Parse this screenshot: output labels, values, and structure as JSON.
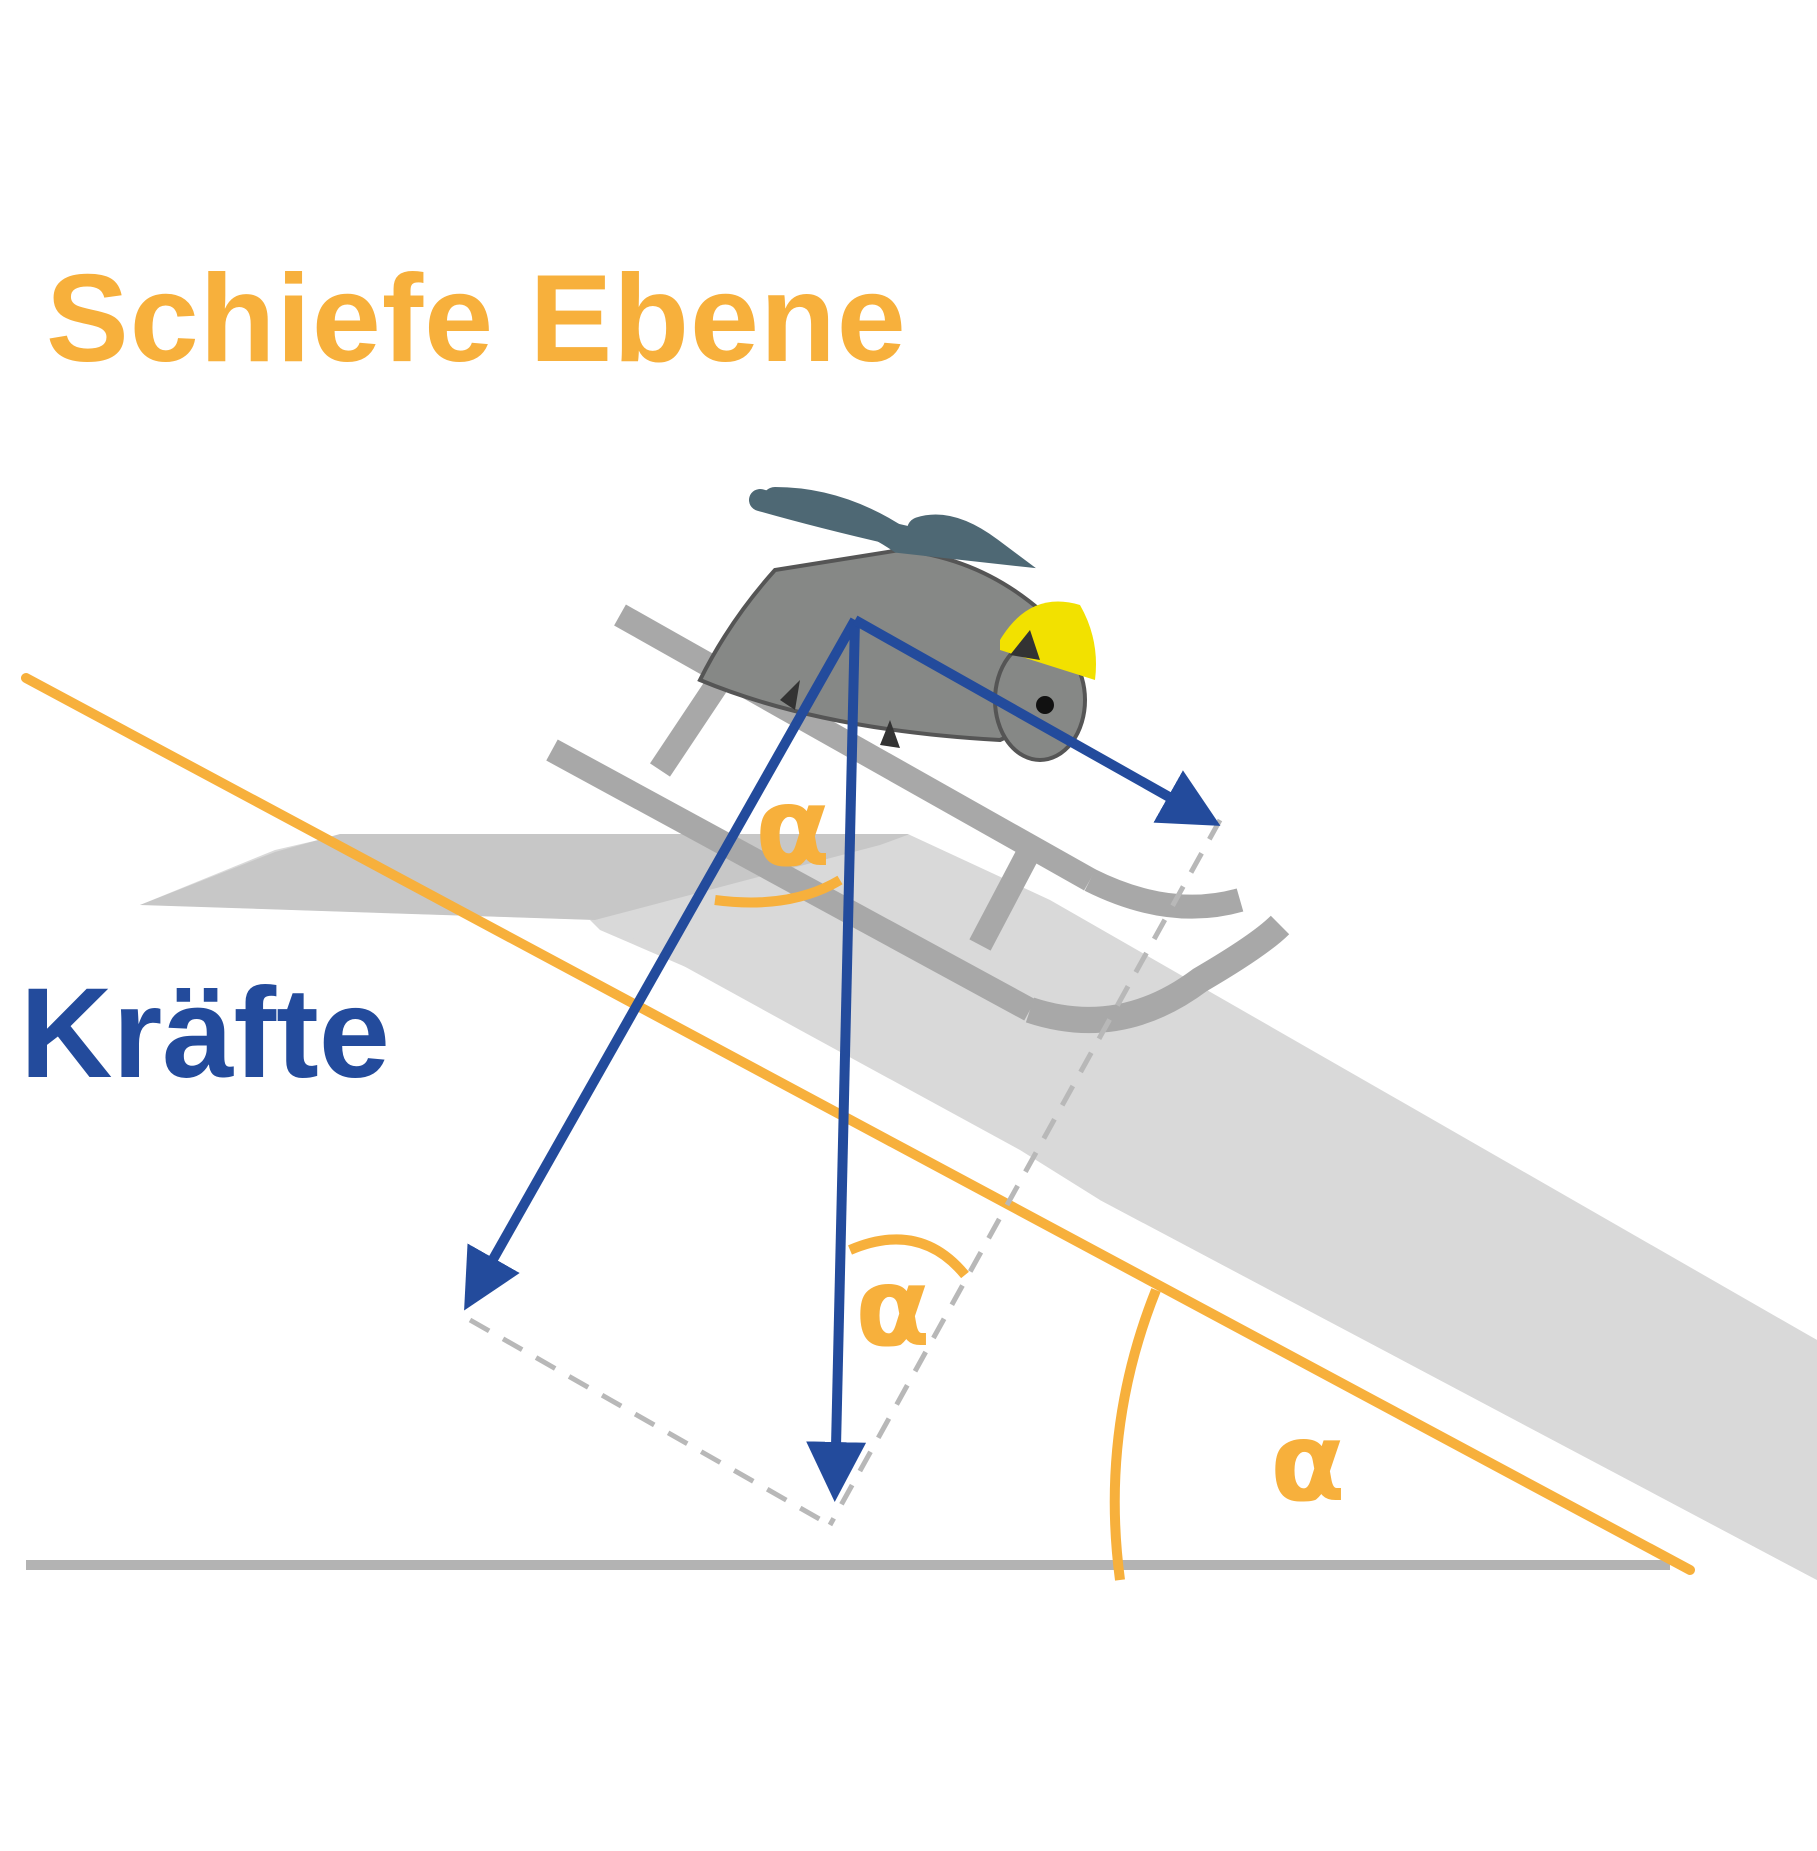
{
  "title": "Schiefe Ebene",
  "subtitle": "Kräfte",
  "angle_symbol": "α",
  "colors": {
    "orange": "#F7B03C",
    "blue": "#234B9C",
    "ramp": "#D9D9D9",
    "sled": "#A8A8A8",
    "ground": "#B3B3B3",
    "dashed": "#B8B8B8",
    "helmet": "#F2E100"
  },
  "icons": {
    "animal": "mouse-with-helmet-icon",
    "sled": "sled-icon"
  }
}
